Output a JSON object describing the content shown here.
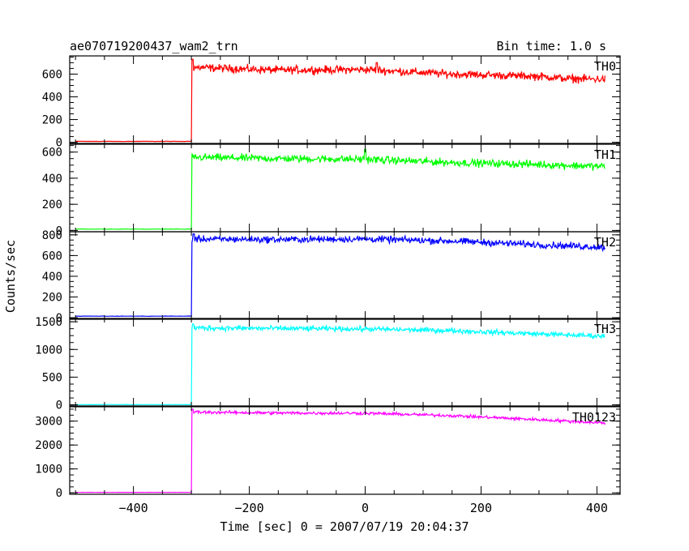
{
  "chart_data": {
    "type": "line",
    "title": "ae070719200437_wam2_trn",
    "subtitle": "Bin time: 1.0 s",
    "xlabel": "Time [sec] 0 = 2007/07/19 20:04:37",
    "ylabel": "Counts/sec",
    "xlim": [
      -510,
      440
    ],
    "x_ticks": [
      -400,
      -200,
      0,
      200,
      400
    ],
    "x_tick_labels": [
      "−400",
      "−200",
      "0",
      "200",
      "400"
    ],
    "grid": false,
    "panels": [
      {
        "name": "TH0",
        "color": "#ff0000",
        "ylim": [
          -10,
          760
        ],
        "yticks": [
          0,
          200,
          400,
          600
        ],
        "ytick_labels": [
          "0",
          "200",
          "400",
          "600"
        ],
        "baseline": 8,
        "step_x": -300,
        "trend": [
          [
            -300,
            660
          ],
          [
            -150,
            635
          ],
          [
            0,
            640
          ],
          [
            150,
            600
          ],
          [
            300,
            580
          ],
          [
            350,
            560
          ],
          [
            415,
            555
          ]
        ],
        "noise": 30,
        "peak": [
          [
            -298,
            730
          ],
          [
            20,
            700
          ]
        ]
      },
      {
        "name": "TH1",
        "color": "#00ff00",
        "ylim": [
          -10,
          660
        ],
        "yticks": [
          0,
          200,
          400,
          600
        ],
        "ytick_labels": [
          "0",
          "200",
          "400",
          "600"
        ],
        "baseline": 10,
        "step_x": -300,
        "trend": [
          [
            -300,
            560
          ],
          [
            -150,
            550
          ],
          [
            0,
            545
          ],
          [
            150,
            520
          ],
          [
            300,
            505
          ],
          [
            415,
            490
          ]
        ],
        "noise": 25,
        "peak": [
          [
            0,
            620
          ]
        ]
      },
      {
        "name": "TH2",
        "color": "#0000ff",
        "ylim": [
          -15,
          830
        ],
        "yticks": [
          0,
          200,
          400,
          600,
          800
        ],
        "ytick_labels": [
          "0",
          "200",
          "400",
          "600",
          "800"
        ],
        "baseline": 15,
        "step_x": -300,
        "trend": [
          [
            -300,
            760
          ],
          [
            -150,
            755
          ],
          [
            0,
            760
          ],
          [
            150,
            740
          ],
          [
            300,
            705
          ],
          [
            415,
            680
          ]
        ],
        "noise": 28,
        "peak": [
          [
            -296,
            810
          ]
        ]
      },
      {
        "name": "TH3",
        "color": "#00ffff",
        "ylim": [
          -20,
          1560
        ],
        "yticks": [
          0,
          500,
          1000,
          1500
        ],
        "ytick_labels": [
          "0",
          "500",
          "1000",
          "1500"
        ],
        "baseline": 5,
        "step_x": -300,
        "trend": [
          [
            -300,
            1390
          ],
          [
            -150,
            1380
          ],
          [
            0,
            1370
          ],
          [
            150,
            1340
          ],
          [
            300,
            1280
          ],
          [
            415,
            1240
          ]
        ],
        "noise": 40,
        "peak": [
          [
            -297,
            1460
          ]
        ]
      },
      {
        "name": "TH0123",
        "color": "#ff00ff",
        "ylim": [
          -60,
          3600
        ],
        "yticks": [
          0,
          1000,
          2000,
          3000
        ],
        "ytick_labels": [
          "0",
          "1000",
          "2000",
          "3000"
        ],
        "baseline": 20,
        "step_x": -300,
        "trend": [
          [
            -300,
            3380
          ],
          [
            -150,
            3340
          ],
          [
            0,
            3330
          ],
          [
            150,
            3230
          ],
          [
            300,
            3060
          ],
          [
            415,
            2920
          ]
        ],
        "noise": 55,
        "peak": [
          [
            -298,
            3500
          ]
        ]
      }
    ]
  }
}
